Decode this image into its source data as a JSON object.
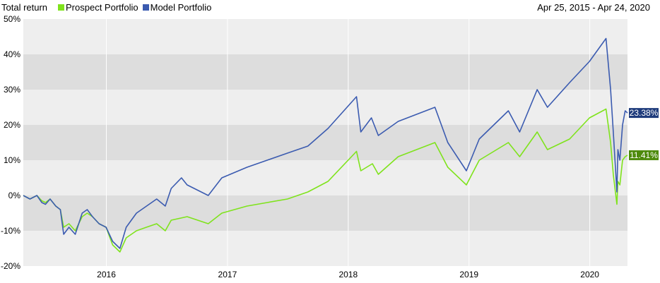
{
  "header": {
    "title": "Total return",
    "date_range": "Apr 25, 2015 - Apr 24, 2020"
  },
  "chart_data": {
    "type": "line",
    "title": "Total return",
    "date_range": "Apr 25, 2015 - Apr 24, 2020",
    "x_start": "2015-04-25",
    "x_end": "2020-04-24",
    "ylim": [
      -20,
      50
    ],
    "y_ticks": [
      "50%",
      "40%",
      "30%",
      "20%",
      "10%",
      "0%",
      "-10%",
      "-20%"
    ],
    "x_ticks": [
      "2016",
      "2017",
      "2018",
      "2019",
      "2020"
    ],
    "grid": true,
    "legend_position": "top-left",
    "series": [
      {
        "name": "Prospect Portfolio",
        "color": "#7fe31c",
        "end_label": "11.41%",
        "label_color": "#4d8a0c",
        "points": [
          [
            "2015-04-25",
            0
          ],
          [
            "2015-05-15",
            -1
          ],
          [
            "2015-06-05",
            0
          ],
          [
            "2015-06-20",
            -1.5
          ],
          [
            "2015-07-01",
            -2
          ],
          [
            "2015-07-15",
            -1
          ],
          [
            "2015-08-01",
            -3
          ],
          [
            "2015-08-15",
            -4
          ],
          [
            "2015-08-25",
            -9
          ],
          [
            "2015-09-10",
            -8
          ],
          [
            "2015-09-29",
            -10
          ],
          [
            "2015-10-20",
            -6
          ],
          [
            "2015-11-04",
            -5
          ],
          [
            "2015-11-20",
            -6
          ],
          [
            "2015-12-10",
            -8
          ],
          [
            "2015-12-31",
            -9
          ],
          [
            "2016-01-20",
            -14
          ],
          [
            "2016-02-11",
            -16
          ],
          [
            "2016-03-01",
            -12
          ],
          [
            "2016-04-01",
            -10
          ],
          [
            "2016-05-01",
            -9
          ],
          [
            "2016-06-01",
            -8
          ],
          [
            "2016-06-27",
            -10
          ],
          [
            "2016-07-15",
            -7
          ],
          [
            "2016-09-01",
            -6
          ],
          [
            "2016-11-04",
            -8
          ],
          [
            "2016-12-15",
            -5
          ],
          [
            "2017-03-01",
            -3
          ],
          [
            "2017-05-01",
            -2
          ],
          [
            "2017-07-01",
            -1
          ],
          [
            "2017-09-01",
            1
          ],
          [
            "2017-11-01",
            4
          ],
          [
            "2018-01-26",
            12.5
          ],
          [
            "2018-02-08",
            7
          ],
          [
            "2018-03-15",
            9
          ],
          [
            "2018-04-02",
            6
          ],
          [
            "2018-06-01",
            11
          ],
          [
            "2018-09-20",
            15
          ],
          [
            "2018-10-29",
            8
          ],
          [
            "2018-12-24",
            3
          ],
          [
            "2019-02-01",
            10
          ],
          [
            "2019-04-30",
            15
          ],
          [
            "2019-06-03",
            11
          ],
          [
            "2019-07-26",
            18
          ],
          [
            "2019-08-26",
            13
          ],
          [
            "2019-11-01",
            16
          ],
          [
            "2019-12-31",
            22
          ],
          [
            "2020-02-19",
            24.5
          ],
          [
            "2020-03-04",
            15
          ],
          [
            "2020-03-12",
            6
          ],
          [
            "2020-03-23",
            -2.5
          ],
          [
            "2020-03-26",
            4
          ],
          [
            "2020-04-01",
            3
          ],
          [
            "2020-04-09",
            10
          ],
          [
            "2020-04-17",
            11
          ],
          [
            "2020-04-24",
            11.41
          ]
        ]
      },
      {
        "name": "Model Portfolio",
        "color": "#3b5bb0",
        "end_label": "23.38%",
        "label_color": "#1f3c7c",
        "points": [
          [
            "2015-04-25",
            0
          ],
          [
            "2015-05-15",
            -1
          ],
          [
            "2015-06-05",
            0
          ],
          [
            "2015-06-20",
            -2
          ],
          [
            "2015-07-01",
            -2.5
          ],
          [
            "2015-07-15",
            -1
          ],
          [
            "2015-08-01",
            -3
          ],
          [
            "2015-08-15",
            -4
          ],
          [
            "2015-08-25",
            -11
          ],
          [
            "2015-09-10",
            -9
          ],
          [
            "2015-09-29",
            -11
          ],
          [
            "2015-10-20",
            -5
          ],
          [
            "2015-11-04",
            -4
          ],
          [
            "2015-11-20",
            -6
          ],
          [
            "2015-12-10",
            -8
          ],
          [
            "2015-12-31",
            -9
          ],
          [
            "2016-01-20",
            -13
          ],
          [
            "2016-02-11",
            -15
          ],
          [
            "2016-03-01",
            -9
          ],
          [
            "2016-04-01",
            -5
          ],
          [
            "2016-06-01",
            -1
          ],
          [
            "2016-06-27",
            -3
          ],
          [
            "2016-07-15",
            2
          ],
          [
            "2016-08-15",
            5
          ],
          [
            "2016-09-01",
            3
          ],
          [
            "2016-11-04",
            0
          ],
          [
            "2016-12-15",
            5
          ],
          [
            "2017-03-01",
            8
          ],
          [
            "2017-05-01",
            10
          ],
          [
            "2017-07-01",
            12
          ],
          [
            "2017-09-01",
            14
          ],
          [
            "2017-11-01",
            19
          ],
          [
            "2018-01-26",
            28
          ],
          [
            "2018-02-08",
            18
          ],
          [
            "2018-03-12",
            22
          ],
          [
            "2018-04-02",
            17
          ],
          [
            "2018-06-01",
            21
          ],
          [
            "2018-09-20",
            25
          ],
          [
            "2018-10-29",
            15
          ],
          [
            "2018-12-24",
            7
          ],
          [
            "2019-02-01",
            16
          ],
          [
            "2019-04-30",
            24
          ],
          [
            "2019-06-03",
            18
          ],
          [
            "2019-07-26",
            30
          ],
          [
            "2019-08-26",
            25
          ],
          [
            "2019-11-01",
            32
          ],
          [
            "2019-12-31",
            38
          ],
          [
            "2020-02-19",
            44.5
          ],
          [
            "2020-03-04",
            30
          ],
          [
            "2020-03-12",
            18
          ],
          [
            "2020-03-23",
            1
          ],
          [
            "2020-03-26",
            13
          ],
          [
            "2020-04-01",
            10
          ],
          [
            "2020-04-09",
            20
          ],
          [
            "2020-04-17",
            24
          ],
          [
            "2020-04-24",
            23.38
          ]
        ]
      }
    ]
  }
}
